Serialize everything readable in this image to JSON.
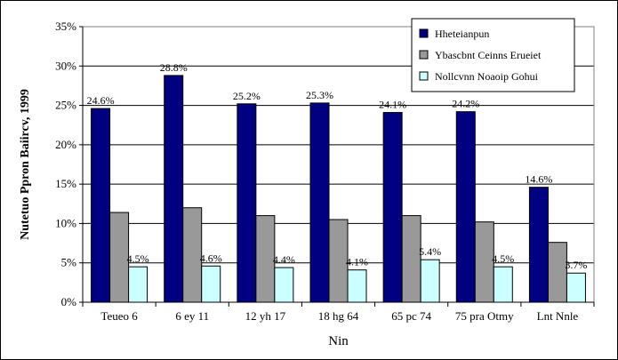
{
  "chart_data": {
    "type": "bar",
    "xlabel": "Nin",
    "ylabel": "Nutetuo Ppron Baiircv, 1999",
    "ylim": [
      0,
      35
    ],
    "yticks": [
      "0%",
      "5%",
      "10%",
      "15%",
      "20%",
      "25%",
      "30%",
      "35%"
    ],
    "ytick_values": [
      0,
      5,
      10,
      15,
      20,
      25,
      30,
      35
    ],
    "grid": true,
    "legend_position": "top-right",
    "categories": [
      "Teueo 6",
      "6 ey 11",
      "12 yh 17",
      "18 hg 64",
      "65 pc 74",
      "75 pra Otmy",
      "Lnt Nnle"
    ],
    "series": [
      {
        "name": "Hheteianpun",
        "color": "#000080",
        "values": [
          24.6,
          28.8,
          25.2,
          25.3,
          24.1,
          24.2,
          14.6
        ],
        "labels": [
          "24.6%",
          "28.8%",
          "25.2%",
          "25.3%",
          "24.1%",
          "24.2%",
          "14.6%"
        ]
      },
      {
        "name": "Ybascbnt Ceinns Erueiet",
        "color": "#999999",
        "values": [
          11.4,
          12.0,
          11.0,
          10.5,
          11.0,
          10.2,
          7.6
        ],
        "labels": []
      },
      {
        "name": "Nollcvnn Noaoip Gohui",
        "color": "#ccffff",
        "values": [
          4.5,
          4.6,
          4.4,
          4.1,
          5.4,
          4.5,
          3.7
        ],
        "labels": [
          "4.5%",
          "4.6%",
          "4.4%",
          "4.1%",
          "5.4%",
          "4.5%",
          "3.7%"
        ]
      }
    ]
  }
}
